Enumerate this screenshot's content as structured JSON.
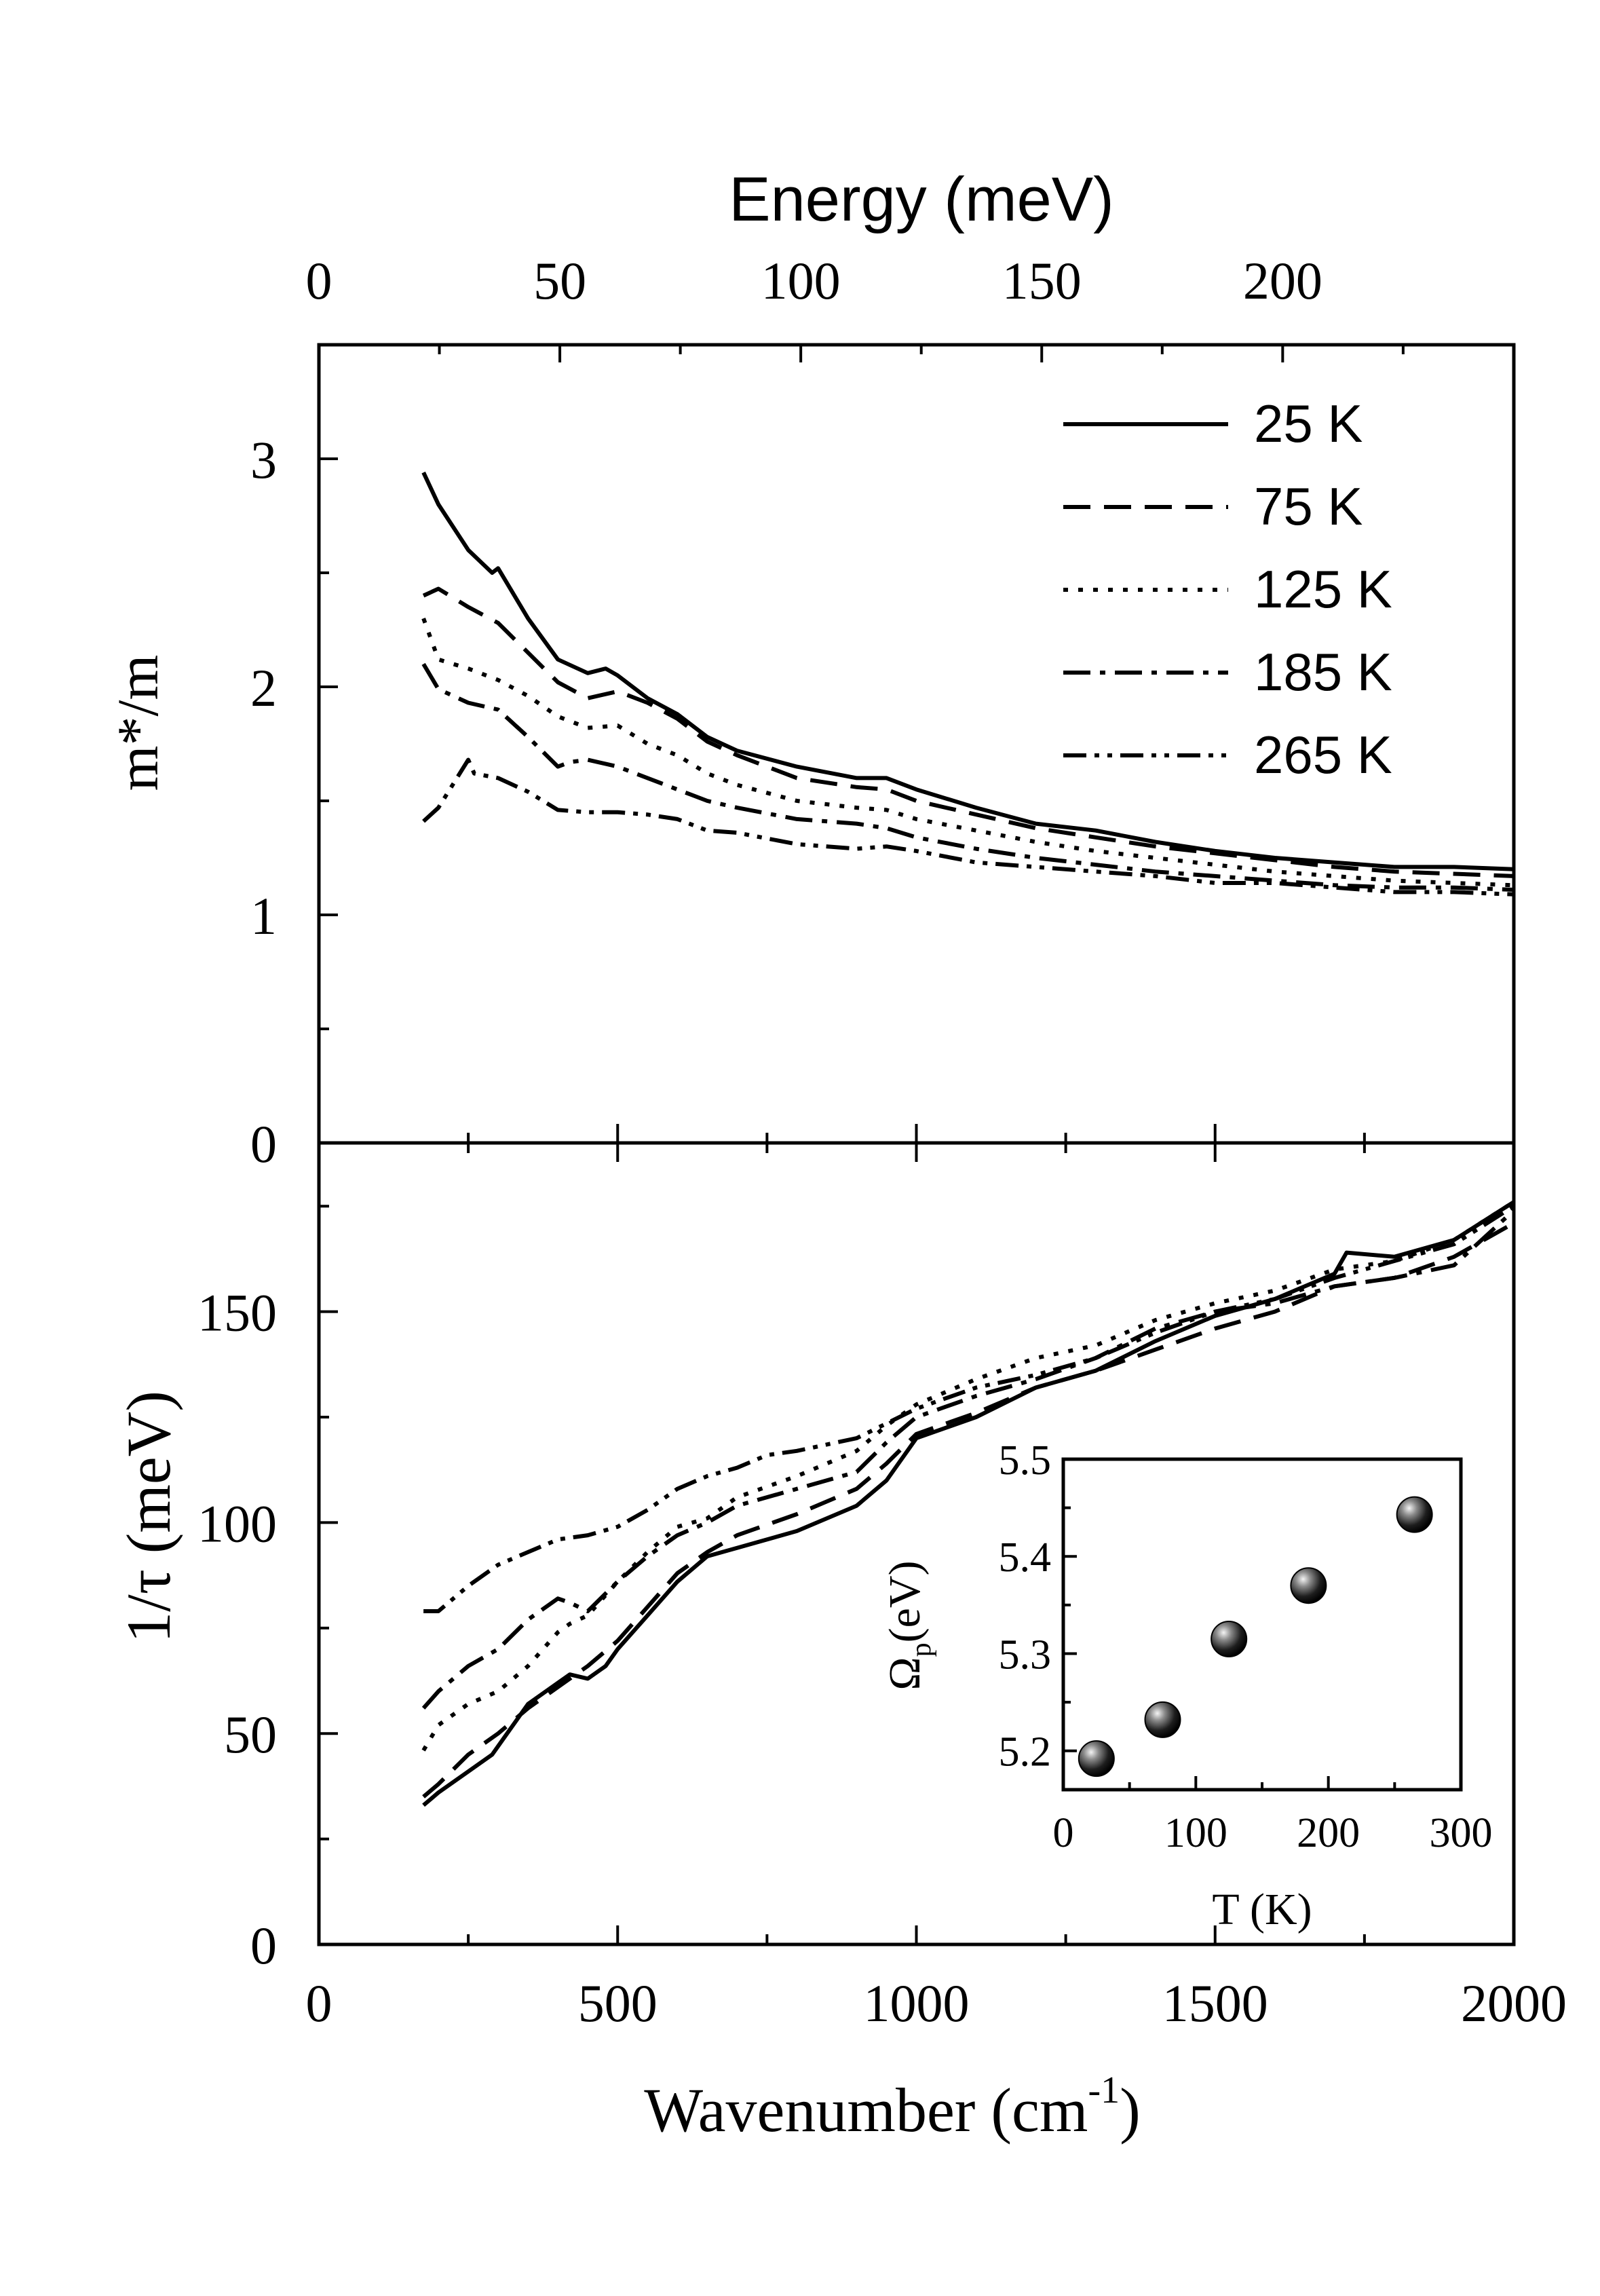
{
  "chart_data": [
    {
      "id": "top",
      "type": "line",
      "top_axis": {
        "label": "Energy (meV)",
        "ticks": [
          {
            "value": 0,
            "label": "0"
          },
          {
            "value": 50,
            "label": "50"
          },
          {
            "value": 100,
            "label": "100"
          },
          {
            "value": 150,
            "label": "150"
          },
          {
            "value": 200,
            "label": "200"
          }
        ]
      },
      "xlim": [
        0,
        2000
      ],
      "ylim": [
        0,
        3.5
      ],
      "ylabel": "m*/m",
      "yticks": [
        {
          "value": 0,
          "label": "0"
        },
        {
          "value": 1,
          "label": "1"
        },
        {
          "value": 2,
          "label": "2"
        },
        {
          "value": 3,
          "label": "3"
        }
      ],
      "legend_position": "top-right",
      "series": [
        {
          "name": "25 K",
          "style": "solid",
          "x": [
            175,
            200,
            250,
            290,
            300,
            350,
            400,
            450,
            480,
            500,
            550,
            600,
            650,
            700,
            800,
            900,
            950,
            1000,
            1100,
            1200,
            1300,
            1400,
            1500,
            1600,
            1700,
            1800,
            1900,
            2000
          ],
          "y": [
            2.94,
            2.8,
            2.6,
            2.5,
            2.52,
            2.3,
            2.12,
            2.06,
            2.08,
            2.05,
            1.95,
            1.88,
            1.78,
            1.72,
            1.65,
            1.6,
            1.6,
            1.55,
            1.47,
            1.4,
            1.37,
            1.32,
            1.28,
            1.25,
            1.23,
            1.21,
            1.21,
            1.2
          ]
        },
        {
          "name": "75 K",
          "style": "dashed",
          "x": [
            175,
            200,
            250,
            300,
            350,
            400,
            450,
            500,
            550,
            600,
            650,
            700,
            800,
            900,
            950,
            1000,
            1100,
            1200,
            1300,
            1400,
            1500,
            1600,
            1700,
            1800,
            1900,
            2000
          ],
          "y": [
            2.4,
            2.43,
            2.35,
            2.28,
            2.15,
            2.02,
            1.95,
            1.98,
            1.93,
            1.86,
            1.76,
            1.7,
            1.6,
            1.56,
            1.55,
            1.5,
            1.44,
            1.38,
            1.34,
            1.3,
            1.27,
            1.24,
            1.21,
            1.19,
            1.18,
            1.17
          ]
        },
        {
          "name": "125 K",
          "style": "dotted",
          "x": [
            175,
            200,
            250,
            300,
            350,
            400,
            450,
            500,
            550,
            600,
            650,
            700,
            800,
            900,
            950,
            1000,
            1100,
            1200,
            1300,
            1400,
            1500,
            1600,
            1700,
            1800,
            1900,
            2000
          ],
          "y": [
            2.3,
            2.12,
            2.08,
            2.03,
            1.96,
            1.87,
            1.82,
            1.83,
            1.75,
            1.7,
            1.62,
            1.57,
            1.5,
            1.47,
            1.46,
            1.42,
            1.37,
            1.32,
            1.28,
            1.25,
            1.22,
            1.19,
            1.17,
            1.15,
            1.14,
            1.13
          ]
        },
        {
          "name": "185 K",
          "style": "dash-dot",
          "x": [
            175,
            200,
            250,
            300,
            350,
            400,
            420,
            450,
            500,
            550,
            600,
            650,
            700,
            800,
            900,
            950,
            1000,
            1100,
            1200,
            1300,
            1400,
            1500,
            1600,
            1700,
            1800,
            1900,
            2000
          ],
          "y": [
            2.1,
            1.99,
            1.93,
            1.9,
            1.78,
            1.65,
            1.67,
            1.68,
            1.65,
            1.6,
            1.55,
            1.5,
            1.47,
            1.42,
            1.4,
            1.38,
            1.34,
            1.29,
            1.25,
            1.22,
            1.19,
            1.17,
            1.15,
            1.13,
            1.12,
            1.12,
            1.11
          ]
        },
        {
          "name": "265 K",
          "style": "dash-dot-dot",
          "x": [
            175,
            200,
            250,
            260,
            300,
            350,
            400,
            450,
            500,
            550,
            600,
            650,
            700,
            800,
            900,
            950,
            1000,
            1100,
            1200,
            1300,
            1400,
            1500,
            1600,
            1700,
            1800,
            1900,
            2000
          ],
          "y": [
            1.41,
            1.47,
            1.68,
            1.62,
            1.6,
            1.54,
            1.46,
            1.45,
            1.45,
            1.44,
            1.42,
            1.37,
            1.36,
            1.31,
            1.29,
            1.3,
            1.28,
            1.23,
            1.21,
            1.19,
            1.17,
            1.14,
            1.14,
            1.12,
            1.1,
            1.1,
            1.09
          ]
        }
      ]
    },
    {
      "id": "bottom",
      "type": "line",
      "xlabel": "Wavenumber (cm",
      "xlabel_sup": "-1",
      "xlabel_close": ")",
      "xlim": [
        0,
        2000
      ],
      "ylim": [
        0,
        190
      ],
      "ylabel": "1/τ (meV)",
      "xticks": [
        {
          "value": 0,
          "label": "0"
        },
        {
          "value": 500,
          "label": "500"
        },
        {
          "value": 1000,
          "label": "1000"
        },
        {
          "value": 1500,
          "label": "1500"
        },
        {
          "value": 2000,
          "label": "2000"
        }
      ],
      "yticks": [
        {
          "value": 0,
          "label": "0"
        },
        {
          "value": 50,
          "label": "50"
        },
        {
          "value": 100,
          "label": "100"
        },
        {
          "value": 150,
          "label": "150"
        }
      ],
      "series": [
        {
          "name": "25 K",
          "style": "solid",
          "x": [
            175,
            200,
            250,
            290,
            300,
            350,
            400,
            420,
            450,
            480,
            500,
            550,
            600,
            650,
            700,
            800,
            900,
            950,
            1000,
            1100,
            1200,
            1300,
            1400,
            1500,
            1600,
            1700,
            1720,
            1800,
            1900,
            2000
          ],
          "y": [
            33,
            36,
            41,
            45,
            47,
            57,
            62,
            64,
            63,
            66,
            70,
            78,
            86,
            92,
            94,
            98,
            104,
            110,
            120,
            125,
            132,
            136,
            143,
            149,
            153,
            159,
            164,
            163,
            167,
            176
          ]
        },
        {
          "name": "75 K",
          "style": "dashed",
          "x": [
            175,
            200,
            250,
            300,
            350,
            400,
            450,
            500,
            550,
            600,
            650,
            700,
            800,
            900,
            950,
            1000,
            1100,
            1200,
            1300,
            1400,
            1500,
            1600,
            1700,
            1800,
            1900,
            2000
          ],
          "y": [
            35,
            38,
            45,
            50,
            56,
            61,
            66,
            72,
            80,
            88,
            93,
            97,
            102,
            108,
            114,
            121,
            126,
            132,
            136,
            141,
            146,
            150,
            156,
            158,
            163,
            171
          ]
        },
        {
          "name": "125 K",
          "style": "dotted",
          "x": [
            175,
            200,
            250,
            300,
            350,
            400,
            420,
            450,
            500,
            550,
            600,
            650,
            700,
            800,
            900,
            950,
            1000,
            1100,
            1200,
            1300,
            1400,
            1500,
            1600,
            1700,
            1800,
            1900,
            2000
          ],
          "y": [
            46,
            52,
            57,
            60,
            66,
            74,
            76,
            78,
            86,
            93,
            99,
            101,
            106,
            111,
            117,
            123,
            128,
            134,
            139,
            142,
            148,
            152,
            155,
            160,
            162,
            167,
            176
          ]
        },
        {
          "name": "185 K",
          "style": "dash-dot",
          "x": [
            175,
            200,
            250,
            300,
            350,
            400,
            420,
            450,
            500,
            550,
            600,
            650,
            700,
            800,
            900,
            950,
            1000,
            1100,
            1200,
            1300,
            1400,
            1500,
            1600,
            1700,
            1800,
            1900,
            2000
          ],
          "y": [
            56,
            60,
            66,
            70,
            77,
            82,
            81,
            79,
            86,
            92,
            97,
            100,
            104,
            108,
            112,
            119,
            125,
            130,
            134,
            139,
            146,
            150,
            152,
            156,
            158,
            161,
            174
          ]
        },
        {
          "name": "265 K",
          "style": "dash-dot-dot",
          "x": [
            175,
            200,
            250,
            300,
            350,
            400,
            450,
            500,
            550,
            600,
            650,
            700,
            750,
            800,
            900,
            1000,
            1100,
            1200,
            1300,
            1400,
            1500,
            1600,
            1700,
            1800,
            1900,
            2000
          ],
          "y": [
            79,
            79,
            85,
            90,
            93,
            96,
            97,
            99,
            103,
            108,
            111,
            113,
            116,
            117,
            120,
            127,
            132,
            135,
            139,
            145,
            150,
            153,
            158,
            162,
            166,
            175
          ]
        }
      ]
    },
    {
      "id": "inset",
      "type": "scatter",
      "xlabel": "T (K)",
      "ylabel": "Ω",
      "ylabel_sub": "p",
      "ylabel_tail": "(eV)",
      "xlim": [
        0,
        300
      ],
      "ylim": [
        5.16,
        5.5
      ],
      "xticks": [
        {
          "value": 0,
          "label": "0"
        },
        {
          "value": 100,
          "label": "100"
        },
        {
          "value": 200,
          "label": "200"
        },
        {
          "value": 300,
          "label": "300"
        }
      ],
      "yticks": [
        {
          "value": 5.2,
          "label": "5.2"
        },
        {
          "value": 5.3,
          "label": "5.3"
        },
        {
          "value": 5.4,
          "label": "5.4"
        },
        {
          "value": 5.5,
          "label": "5.5"
        }
      ],
      "points": [
        {
          "x": 25,
          "y": 5.192
        },
        {
          "x": 75,
          "y": 5.232
        },
        {
          "x": 125,
          "y": 5.315
        },
        {
          "x": 185,
          "y": 5.37
        },
        {
          "x": 265,
          "y": 5.443
        }
      ]
    }
  ]
}
